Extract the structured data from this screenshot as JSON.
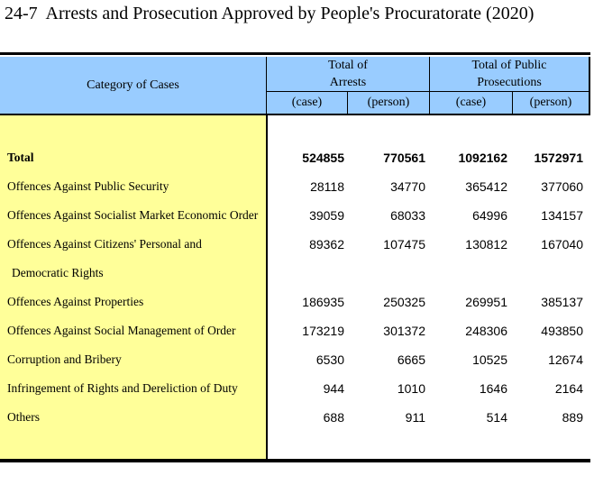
{
  "title": "24-7  Arrests and Prosecution Approved by People's Procuratorate (2020)",
  "colors": {
    "header_bg": "#99CCFF",
    "category_column_bg": "#FFFF99",
    "border": "#000000",
    "text": "#000000",
    "body_bg": "#FFFFFF"
  },
  "table": {
    "category_header": "Category of Cases",
    "groups": [
      {
        "line1": "Total of",
        "line2": "Arrests"
      },
      {
        "line1": "Total of Public",
        "line2": "Prosecutions"
      }
    ],
    "subheaders": [
      "(case)",
      "(person)",
      "(case)",
      "(person)"
    ],
    "rows": [
      {
        "label": "Total",
        "bold": true,
        "values": [
          524855,
          770561,
          1092162,
          1572971
        ]
      },
      {
        "label": "Offences Against Public Security",
        "values": [
          28118,
          34770,
          365412,
          377060
        ]
      },
      {
        "label": "Offences Against Socialist Market Economic Order",
        "values": [
          39059,
          68033,
          64996,
          134157
        ]
      },
      {
        "label": "Offences Against Citizens' Personal and",
        "values": [
          89362,
          107475,
          130812,
          167040
        ]
      },
      {
        "label": "Democratic Rights",
        "indent": true,
        "values": [
          null,
          null,
          null,
          null
        ]
      },
      {
        "label": "Offences Against Properties",
        "values": [
          186935,
          250325,
          269951,
          385137
        ]
      },
      {
        "label": "Offences Against Social Management of Order",
        "values": [
          173219,
          301372,
          248306,
          493850
        ]
      },
      {
        "label": "Corruption and Bribery",
        "values": [
          6530,
          6665,
          10525,
          12674
        ]
      },
      {
        "label": "Infringement of Rights and Dereliction of Duty",
        "values": [
          944,
          1010,
          1646,
          2164
        ]
      },
      {
        "label": "Others",
        "values": [
          688,
          911,
          514,
          889
        ]
      }
    ]
  }
}
